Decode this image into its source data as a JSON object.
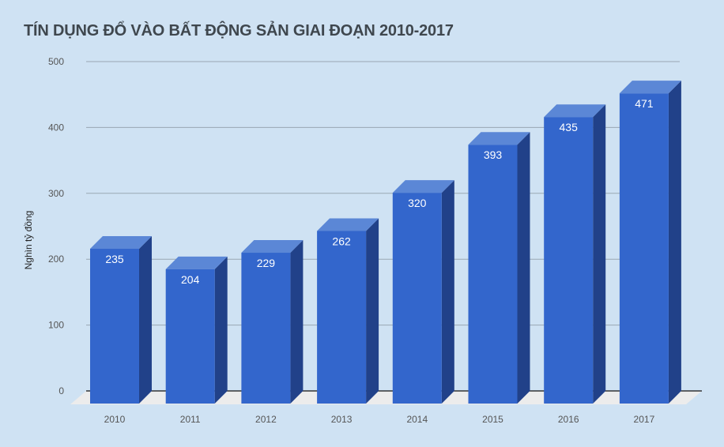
{
  "chart_data": {
    "type": "bar",
    "title": "TÍN DỤNG ĐỔ VÀO BẤT ĐỘNG SẢN GIAI ĐOẠN 2010-2017",
    "xlabel": "",
    "ylabel": "Nghìn tỷ đồng",
    "categories": [
      "2010",
      "2011",
      "2012",
      "2013",
      "2014",
      "2015",
      "2016",
      "2017"
    ],
    "values": [
      235,
      204,
      229,
      262,
      320,
      393,
      435,
      471
    ],
    "ylim": [
      0,
      500
    ],
    "yticks": [
      0,
      100,
      200,
      300,
      400,
      500
    ],
    "grid": true,
    "legend": "none",
    "style": "3d",
    "colors": {
      "front": "#3366cc",
      "top": "#5b87d6",
      "side": "#214189",
      "floor": "#ececec",
      "background": "#cfe2f3"
    }
  }
}
